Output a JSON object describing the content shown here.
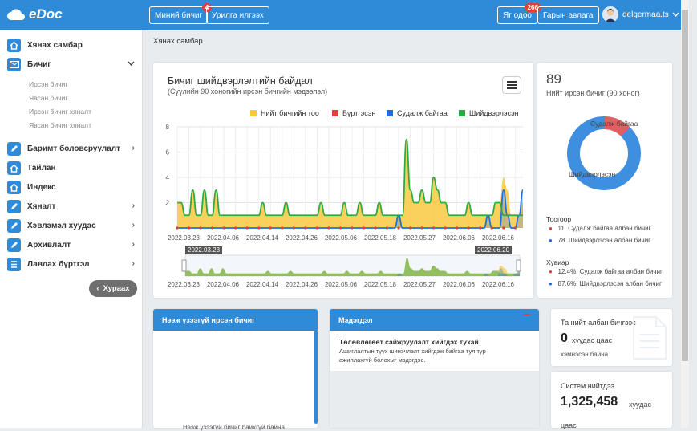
{
  "header": {
    "logo": "eDoc",
    "my_docs": "Миний бичиг",
    "my_docs_count": "4",
    "send_invite": "Урилга илгээх",
    "now": "Яг одоо",
    "now_count": "266",
    "phonebook": "Гарын авлага",
    "user": "delgermaa.ts"
  },
  "sidebar": {
    "dashboard": "Хянах самбар",
    "documents": "Бичиг",
    "sub": [
      "Ирсэн бичиг",
      "Явсан бичиг",
      "Ирсэн бичиг хяналт",
      "Явсан бичиг хяналт"
    ],
    "items": [
      "Баримт боловсруулалт",
      "Тайлан",
      "Индекс",
      "Хяналт",
      "Хэвлэмэл хуудас",
      "Архивлалт",
      "Лавлах бүртгэл"
    ],
    "collapse": "Хураах"
  },
  "breadcrumb": "Хянах самбар",
  "chart": {
    "title": "Бичиг шийдвэрлэлтийн байдал",
    "subtitle": "(Сүүлийн 90 хоногийн ирсэн бичгийн мэдээлэл)",
    "navigator_start": "2022.03.23",
    "navigator_end": "2022.06.20"
  },
  "chart_data": {
    "type": "area",
    "title": "Бичиг шийдвэрлэлтийн байдал",
    "subtitle": "(Сүүлийн 90 хоногийн ирсэн бичгийн мэдээлэл)",
    "x_ticks": [
      "2022.03.23",
      "2022.04.06",
      "2022.04.14",
      "2022.04.26",
      "2022.05.06",
      "2022.05.18",
      "2022.05.27",
      "2022.06.06",
      "2022.06.16"
    ],
    "y_ticks": [
      2,
      4,
      6,
      8
    ],
    "ylim": [
      0,
      8
    ],
    "series": [
      {
        "name": "Нийт бичгийн тоо",
        "color": "#f9c940",
        "values": [
          2,
          2,
          1,
          1,
          3,
          1,
          1,
          3,
          1,
          1,
          3,
          1,
          1,
          1,
          1,
          1,
          1,
          1,
          1,
          1,
          1,
          1,
          2,
          1,
          1,
          1,
          1,
          1,
          2,
          1,
          1,
          1,
          1,
          1,
          1,
          1,
          1,
          2,
          1,
          1,
          1,
          1,
          1,
          2,
          1,
          1,
          1,
          2,
          1,
          1,
          1,
          1,
          2,
          1,
          1,
          1,
          1,
          1,
          1,
          7,
          3,
          2,
          2,
          3,
          2,
          2,
          4,
          3,
          2,
          2,
          1,
          1,
          1,
          1,
          1,
          2,
          1,
          1,
          1,
          1,
          1,
          1,
          2,
          2,
          4,
          3,
          1,
          1,
          1,
          2
        ]
      },
      {
        "name": "Бүртгэсэн",
        "color": "#e0403a",
        "values": []
      },
      {
        "name": "Судалж байгаа",
        "color": "#1f6fe0",
        "values": [
          0,
          0,
          0,
          0,
          0,
          0,
          0,
          0,
          0,
          0,
          0,
          0,
          0,
          0,
          0,
          0,
          0,
          0,
          0,
          0,
          0,
          0,
          0,
          0,
          0,
          0,
          0,
          0,
          0,
          0,
          0,
          0,
          0,
          0,
          0,
          0,
          0,
          0,
          0,
          0,
          0,
          0,
          0,
          0,
          0,
          0,
          0,
          0,
          0,
          0,
          0,
          0,
          0,
          0,
          0,
          0,
          0,
          1,
          0,
          0,
          0,
          0,
          0,
          0,
          0,
          0,
          0,
          0,
          0,
          0,
          0,
          0,
          0,
          0,
          0,
          0,
          0,
          0,
          0,
          0,
          1,
          0,
          0,
          0,
          3,
          1,
          0,
          0,
          1,
          3
        ]
      },
      {
        "name": "Шийдвэрлэсэн",
        "color": "#2eaa44",
        "values": [
          2,
          2,
          1,
          1,
          3,
          1,
          1,
          3,
          1,
          1,
          3,
          1,
          1,
          1,
          1,
          1,
          1,
          1,
          1,
          1,
          1,
          1,
          2,
          1,
          1,
          1,
          1,
          1,
          2,
          1,
          1,
          1,
          1,
          1,
          1,
          1,
          1,
          2,
          1,
          1,
          1,
          1,
          1,
          2,
          1,
          1,
          1,
          2,
          1,
          1,
          1,
          1,
          2,
          1,
          1,
          1,
          1,
          1,
          1,
          7,
          3,
          2,
          2,
          3,
          2,
          2,
          4,
          3,
          2,
          2,
          1,
          1,
          1,
          1,
          1,
          2,
          1,
          1,
          1,
          1,
          1,
          1,
          2,
          2,
          1,
          1,
          1,
          1,
          1,
          1
        ]
      }
    ]
  },
  "donut": {
    "total": "89",
    "total_label": "Нийт ирсэн бичиг (90 хоног)",
    "slice_labels": [
      "Судалж байгаа",
      "Шийдвэрлэсэн"
    ],
    "count_title": "Тоогоор",
    "counts": [
      {
        "value": "11",
        "label": "Судалж байгаа албан бичиг",
        "color": "#e0403a"
      },
      {
        "value": "78",
        "label": "Шийдвэрлэсэн албан бичиг",
        "color": "#1f6fe0"
      }
    ],
    "percent_title": "Хувиар",
    "percents": [
      {
        "value": "12.4%",
        "label": "Судалж байгаа албан бичиг",
        "color": "#e0403a"
      },
      {
        "value": "87.6%",
        "label": "Шийдвэрлэсэн албан бичиг",
        "color": "#1f6fe0"
      }
    ],
    "chart_data": {
      "type": "pie",
      "labels": [
        "Судалж байгаа",
        "Шийдвэрлэсэн"
      ],
      "values": [
        11,
        78
      ],
      "colors": [
        "#e06060",
        "#3e8fe0"
      ]
    }
  },
  "panels": {
    "unseen_title": "Нээж үзээгүй ирсэн бичиг",
    "unseen_footer": "Нээж үзээгүй бичиг байхгүй байна",
    "notice_title": "Мэдэгдэл",
    "notice_heading": "Төлөвлөгөөт сайжруулалт хийгдэх тухай",
    "notice_body_1": "Ашиглалтын түүх шинэчлэлт хийгдэж байгаа тул түр",
    "notice_body_2": "ажиллахгүй болохыг мэдэгдэе.",
    "saved_title": "Та нийт албан бичгээс",
    "saved_value": "0",
    "saved_unit": "хуудас цаас",
    "saved_tail": "хэмнэсэн байна",
    "system_title": "Систем нийтдээ",
    "system_value": "1,325,458",
    "system_unit": "хуудас",
    "system_tail": "цаас"
  }
}
